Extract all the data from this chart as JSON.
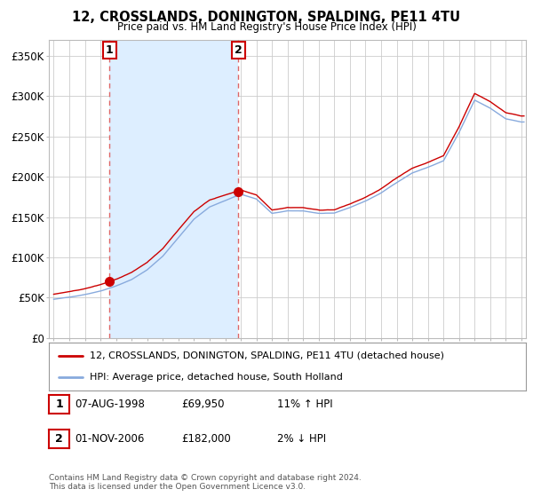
{
  "title": "12, CROSSLANDS, DONINGTON, SPALDING, PE11 4TU",
  "subtitle": "Price paid vs. HM Land Registry's House Price Index (HPI)",
  "legend_line1": "12, CROSSLANDS, DONINGTON, SPALDING, PE11 4TU (detached house)",
  "legend_line2": "HPI: Average price, detached house, South Holland",
  "annotation1_label": "1",
  "annotation1_date": "07-AUG-1998",
  "annotation1_price": "£69,950",
  "annotation1_hpi": "11% ↑ HPI",
  "annotation2_label": "2",
  "annotation2_date": "01-NOV-2006",
  "annotation2_price": "£182,000",
  "annotation2_hpi": "2% ↓ HPI",
  "footnote": "Contains HM Land Registry data © Crown copyright and database right 2024.\nThis data is licensed under the Open Government Licence v3.0.",
  "sale1_year": 1998.583,
  "sale1_value": 69950,
  "sale2_year": 2006.833,
  "sale2_value": 182000,
  "property_line_color": "#cc0000",
  "hpi_line_color": "#88aadd",
  "vline_color": "#dd6666",
  "shade_color": "#ddeeff",
  "background_color": "#ffffff",
  "plot_bg_color": "#ffffff",
  "grid_color": "#cccccc",
  "ylim": [
    0,
    370000
  ],
  "xlim_start": 1994.7,
  "xlim_end": 2025.3
}
